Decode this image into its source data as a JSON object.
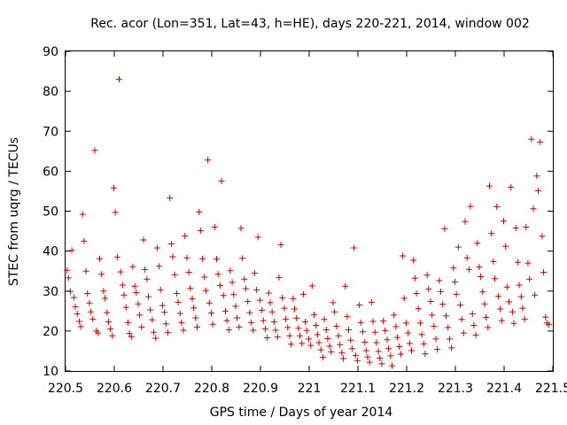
{
  "chart_data": {
    "type": "scatter",
    "title": "Rec. acor (Lon=351, Lat=43, h=HE), days 220-221, 2014, window 002",
    "xlabel": "GPS time / Days of year 2014",
    "ylabel": "STEC from uqrg / TECUs",
    "xlim": [
      220.5,
      221.5
    ],
    "ylim": [
      10,
      90
    ],
    "grid": false,
    "xticks": [
      220.5,
      220.6,
      220.7,
      220.8,
      220.9,
      221.0,
      221.1,
      221.2,
      221.3,
      221.4,
      221.5
    ],
    "xtick_labels": [
      "220.5",
      "220.6",
      "220.7",
      "220.8",
      "220.9",
      "221",
      "221.1",
      "221.2",
      "221.3",
      "221.4",
      "221.5"
    ],
    "yticks": [
      10,
      20,
      30,
      40,
      50,
      60,
      70,
      80,
      90
    ],
    "ytick_labels": [
      "10",
      "20",
      "30",
      "40",
      "50",
      "60",
      "70",
      "80",
      "90"
    ],
    "marker": "+",
    "color": "#cc0000",
    "series": [
      {
        "name": "STEC",
        "points": [
          [
            220.503,
            35.2
          ],
          [
            220.506,
            33.3
          ],
          [
            220.51,
            29.9
          ],
          [
            220.513,
            40.2
          ],
          [
            220.517,
            28.4
          ],
          [
            220.52,
            26.1
          ],
          [
            220.524,
            24.3
          ],
          [
            220.528,
            22.4
          ],
          [
            220.531,
            21.1
          ],
          [
            220.535,
            49.2
          ],
          [
            220.538,
            42.5
          ],
          [
            220.542,
            35.0
          ],
          [
            220.545,
            29.4
          ],
          [
            220.549,
            27.0
          ],
          [
            220.552,
            24.8
          ],
          [
            220.556,
            23.0
          ],
          [
            220.56,
            65.2
          ],
          [
            220.563,
            20.0
          ],
          [
            220.567,
            19.5
          ],
          [
            220.57,
            38.1
          ],
          [
            220.574,
            34.2
          ],
          [
            220.578,
            30.0
          ],
          [
            220.581,
            28.2
          ],
          [
            220.585,
            24.6
          ],
          [
            220.588,
            22.3
          ],
          [
            220.592,
            20.5
          ],
          [
            220.596,
            18.8
          ],
          [
            220.599,
            55.8
          ],
          [
            220.602,
            49.7
          ],
          [
            220.606,
            38.5
          ],
          [
            220.61,
            83.0
          ],
          [
            220.613,
            34.8
          ],
          [
            220.617,
            31.5
          ],
          [
            220.62,
            29.0
          ],
          [
            220.624,
            25.9
          ],
          [
            220.628,
            22.1
          ],
          [
            220.631,
            19.4
          ],
          [
            220.635,
            18.6
          ],
          [
            220.638,
            36.1
          ],
          [
            220.642,
            31.2
          ],
          [
            220.645,
            29.6
          ],
          [
            220.649,
            26.8
          ],
          [
            220.652,
            24.0
          ],
          [
            220.656,
            21.0
          ],
          [
            220.66,
            42.8
          ],
          [
            220.663,
            35.4
          ],
          [
            220.667,
            33.0
          ],
          [
            220.67,
            28.6
          ],
          [
            220.674,
            25.3
          ],
          [
            220.678,
            22.8
          ],
          [
            220.681,
            19.7
          ],
          [
            220.685,
            18.2
          ],
          [
            220.688,
            40.8
          ],
          [
            220.692,
            36.2
          ],
          [
            220.695,
            30.3
          ],
          [
            220.699,
            26.4
          ],
          [
            220.703,
            24.7
          ],
          [
            220.706,
            21.8
          ],
          [
            220.71,
            19.6
          ],
          [
            220.714,
            53.3
          ],
          [
            220.717,
            41.8
          ],
          [
            220.72,
            38.6
          ],
          [
            220.724,
            34.1
          ],
          [
            220.728,
            29.4
          ],
          [
            220.731,
            27.2
          ],
          [
            220.735,
            24.4
          ],
          [
            220.738,
            22.1
          ],
          [
            220.742,
            20.2
          ],
          [
            220.745,
            43.8
          ],
          [
            220.749,
            38.3
          ],
          [
            220.753,
            34.7
          ],
          [
            220.756,
            30.7
          ],
          [
            220.76,
            28.1
          ],
          [
            220.763,
            25.8
          ],
          [
            220.767,
            23.3
          ],
          [
            220.77,
            21.0
          ],
          [
            220.774,
            49.8
          ],
          [
            220.777,
            45.1
          ],
          [
            220.781,
            38.1
          ],
          [
            220.785,
            33.5
          ],
          [
            220.788,
            30.1
          ],
          [
            220.792,
            62.8
          ],
          [
            220.795,
            27.0
          ],
          [
            220.799,
            24.5
          ],
          [
            220.802,
            21.7
          ],
          [
            220.806,
            46.0
          ],
          [
            220.81,
            38.0
          ],
          [
            220.813,
            34.2
          ],
          [
            220.817,
            31.4
          ],
          [
            220.82,
            57.5
          ],
          [
            220.824,
            28.9
          ],
          [
            220.828,
            25.0
          ],
          [
            220.831,
            22.6
          ],
          [
            220.835,
            20.3
          ],
          [
            220.838,
            35.1
          ],
          [
            220.842,
            32.2
          ],
          [
            220.845,
            29.1
          ],
          [
            220.849,
            26.2
          ],
          [
            220.852,
            23.3
          ],
          [
            220.856,
            21.0
          ],
          [
            220.86,
            45.7
          ],
          [
            220.863,
            38.2
          ],
          [
            220.867,
            33.0
          ],
          [
            220.87,
            30.6
          ],
          [
            220.874,
            27.4
          ],
          [
            220.878,
            24.6
          ],
          [
            220.881,
            22.1
          ],
          [
            220.885,
            20.2
          ],
          [
            220.888,
            34.5
          ],
          [
            220.892,
            30.3
          ],
          [
            220.895,
            43.5
          ],
          [
            220.899,
            27.7
          ],
          [
            220.903,
            25.2
          ],
          [
            220.906,
            22.6
          ],
          [
            220.91,
            20.5
          ],
          [
            220.914,
            18.3
          ],
          [
            220.917,
            29.5
          ],
          [
            220.92,
            27.1
          ],
          [
            220.924,
            24.8
          ],
          [
            220.928,
            22.3
          ],
          [
            220.931,
            20.2
          ],
          [
            220.935,
            18.5
          ],
          [
            220.938,
            33.4
          ],
          [
            220.942,
            41.6
          ],
          [
            220.945,
            28.3
          ],
          [
            220.949,
            25.7
          ],
          [
            220.952,
            23.0
          ],
          [
            220.956,
            20.9
          ],
          [
            220.96,
            18.8
          ],
          [
            220.963,
            16.7
          ],
          [
            220.967,
            28.1
          ],
          [
            220.97,
            25.5
          ],
          [
            220.974,
            23.2
          ],
          [
            220.978,
            20.7
          ],
          [
            220.981,
            18.8
          ],
          [
            220.985,
            16.9
          ],
          [
            220.988,
            29.2
          ],
          [
            220.992,
            22.3
          ],
          [
            220.995,
            20.1
          ],
          [
            220.999,
            18.0
          ],
          [
            221.003,
            16.4
          ],
          [
            221.006,
            31.3
          ],
          [
            221.01,
            24.1
          ],
          [
            221.014,
            21.4
          ],
          [
            221.017,
            19.1
          ],
          [
            221.02,
            17.1
          ],
          [
            221.024,
            15.3
          ],
          [
            221.028,
            13.4
          ],
          [
            221.031,
            22.9
          ],
          [
            221.035,
            20.3
          ],
          [
            221.038,
            18.1
          ],
          [
            221.042,
            16.2
          ],
          [
            221.045,
            14.8
          ],
          [
            221.049,
            27.1
          ],
          [
            221.052,
            24.8
          ],
          [
            221.056,
            21.2
          ],
          [
            221.06,
            18.8
          ],
          [
            221.063,
            16.6
          ],
          [
            221.067,
            14.6
          ],
          [
            221.07,
            13.1
          ],
          [
            221.074,
            31.2
          ],
          [
            221.078,
            23.6
          ],
          [
            221.081,
            20.3
          ],
          [
            221.085,
            17.7
          ],
          [
            221.088,
            15.6
          ],
          [
            221.092,
            40.8
          ],
          [
            221.095,
            13.9
          ],
          [
            221.099,
            12.6
          ],
          [
            221.103,
            26.5
          ],
          [
            221.106,
            22.1
          ],
          [
            221.11,
            19.8
          ],
          [
            221.114,
            17.2
          ],
          [
            221.117,
            15.1
          ],
          [
            221.12,
            13.5
          ],
          [
            221.124,
            12.2
          ],
          [
            221.128,
            27.2
          ],
          [
            221.131,
            22.4
          ],
          [
            221.135,
            19.7
          ],
          [
            221.138,
            17.1
          ],
          [
            221.142,
            14.9
          ],
          [
            221.145,
            13.2
          ],
          [
            221.149,
            11.8
          ],
          [
            221.152,
            22.5
          ],
          [
            221.156,
            20.1
          ],
          [
            221.16,
            17.8
          ],
          [
            221.163,
            15.6
          ],
          [
            221.167,
            13.8
          ],
          [
            221.17,
            11.3
          ],
          [
            221.174,
            24.0
          ],
          [
            221.178,
            21.1
          ],
          [
            221.181,
            18.4
          ],
          [
            221.185,
            16.1
          ],
          [
            221.188,
            14.2
          ],
          [
            221.192,
            38.8
          ],
          [
            221.195,
            28.2
          ],
          [
            221.199,
            22.0
          ],
          [
            221.203,
            19.5
          ],
          [
            221.206,
            16.9
          ],
          [
            221.21,
            15.1
          ],
          [
            221.214,
            37.7
          ],
          [
            221.217,
            33.2
          ],
          [
            221.22,
            29.4
          ],
          [
            221.224,
            25.6
          ],
          [
            221.228,
            22.0
          ],
          [
            221.231,
            19.1
          ],
          [
            221.235,
            16.8
          ],
          [
            221.238,
            14.3
          ],
          [
            221.242,
            34.0
          ],
          [
            221.245,
            30.5
          ],
          [
            221.249,
            27.4
          ],
          [
            221.252,
            24.0
          ],
          [
            221.256,
            21.2
          ],
          [
            221.26,
            18.0
          ],
          [
            221.263,
            15.4
          ],
          [
            221.267,
            32.6
          ],
          [
            221.27,
            29.9
          ],
          [
            221.274,
            26.7
          ],
          [
            221.278,
            45.6
          ],
          [
            221.281,
            23.8
          ],
          [
            221.285,
            20.9
          ],
          [
            221.288,
            18.0
          ],
          [
            221.292,
            15.8
          ],
          [
            221.296,
            35.8
          ],
          [
            221.299,
            32.3
          ],
          [
            221.302,
            29.2
          ],
          [
            221.306,
            41.0
          ],
          [
            221.31,
            26.5
          ],
          [
            221.313,
            22.9
          ],
          [
            221.317,
            19.5
          ],
          [
            221.32,
            47.4
          ],
          [
            221.324,
            38.3
          ],
          [
            221.328,
            35.4
          ],
          [
            221.331,
            51.2
          ],
          [
            221.335,
            24.3
          ],
          [
            221.338,
            21.4
          ],
          [
            221.342,
            19.0
          ],
          [
            221.345,
            42.0
          ],
          [
            221.349,
            36.0
          ],
          [
            221.352,
            33.6
          ],
          [
            221.356,
            29.8
          ],
          [
            221.36,
            26.8
          ],
          [
            221.363,
            23.4
          ],
          [
            221.367,
            20.9
          ],
          [
            221.37,
            56.3
          ],
          [
            221.374,
            44.4
          ],
          [
            221.378,
            37.4
          ],
          [
            221.381,
            33.1
          ],
          [
            221.385,
            51.1
          ],
          [
            221.388,
            28.7
          ],
          [
            221.392,
            25.5
          ],
          [
            221.395,
            22.6
          ],
          [
            221.399,
            47.5
          ],
          [
            221.403,
            41.2
          ],
          [
            221.406,
            31.0
          ],
          [
            221.41,
            27.3
          ],
          [
            221.414,
            56.0
          ],
          [
            221.417,
            24.8
          ],
          [
            221.42,
            21.9
          ],
          [
            221.424,
            45.8
          ],
          [
            221.428,
            37.2
          ],
          [
            221.431,
            31.5
          ],
          [
            221.435,
            28.6
          ],
          [
            221.438,
            25.7
          ],
          [
            221.442,
            23.0
          ],
          [
            221.445,
            46.0
          ],
          [
            221.449,
            37.0
          ],
          [
            221.452,
            33.0
          ],
          [
            221.456,
            68.0
          ],
          [
            221.46,
            50.6
          ],
          [
            221.463,
            29.0
          ],
          [
            221.467,
            58.8
          ],
          [
            221.47,
            55.1
          ],
          [
            221.474,
            67.3
          ],
          [
            221.478,
            43.7
          ],
          [
            221.481,
            34.7
          ],
          [
            221.485,
            23.5
          ],
          [
            221.488,
            22.0
          ],
          [
            221.492,
            21.6
          ]
        ]
      }
    ]
  }
}
